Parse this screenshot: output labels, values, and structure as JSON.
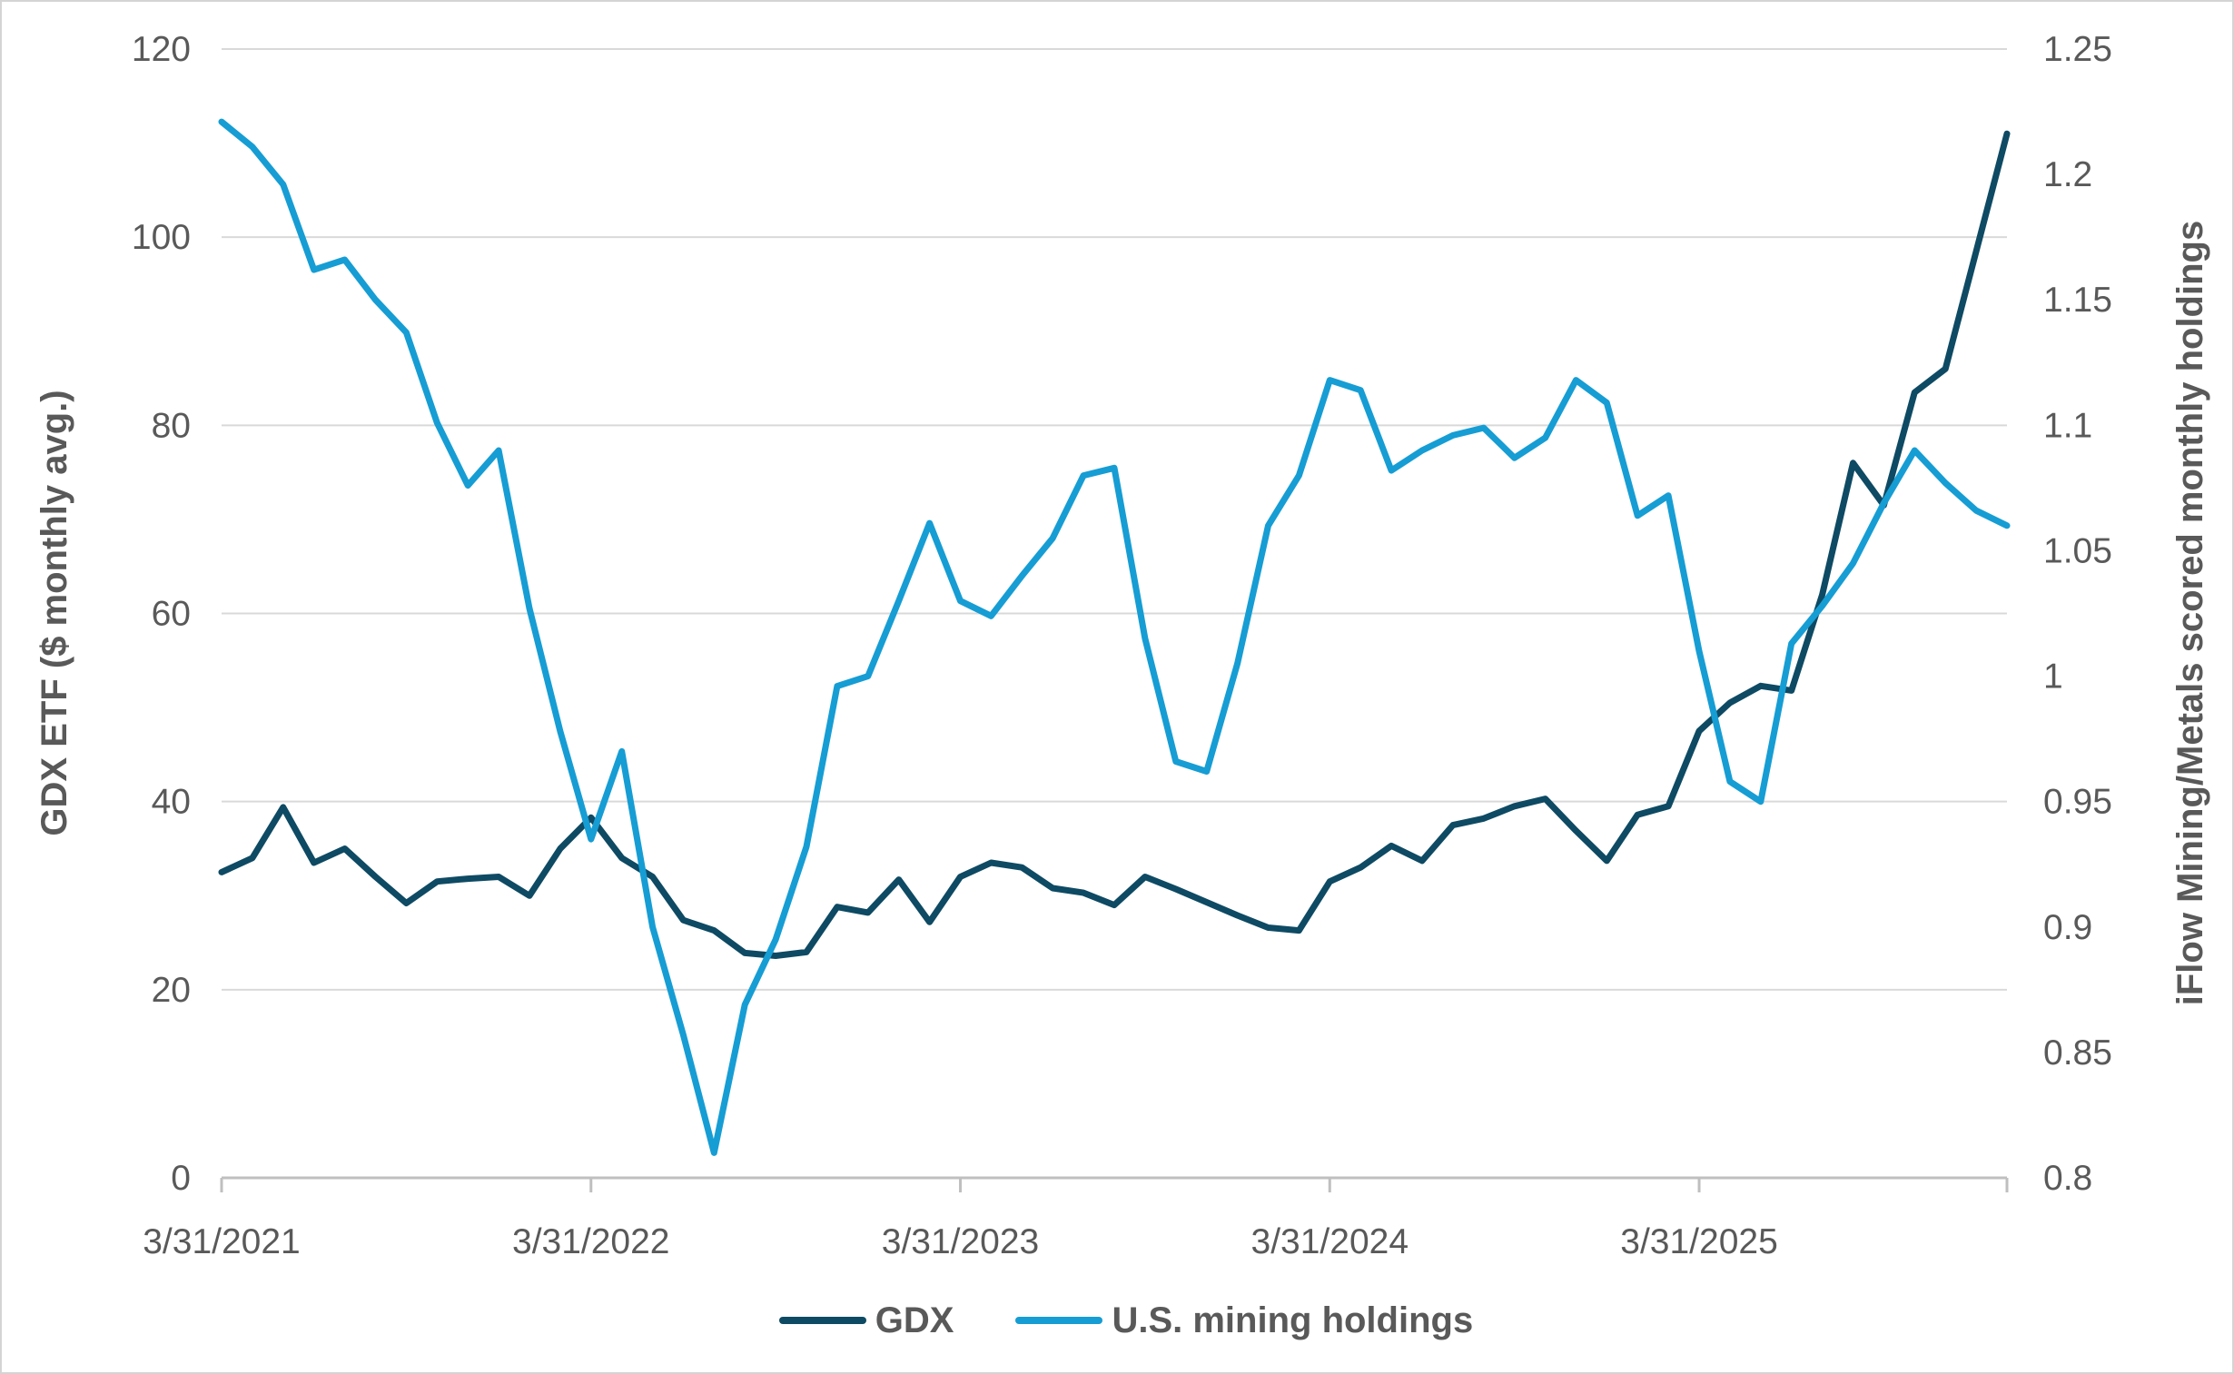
{
  "chart_data": {
    "type": "line",
    "title": "",
    "x_dates": [
      "3/31/2021",
      "4/30/2021",
      "5/31/2021",
      "6/30/2021",
      "7/31/2021",
      "8/31/2021",
      "9/30/2021",
      "10/31/2021",
      "11/30/2021",
      "12/31/2021",
      "1/31/2022",
      "2/28/2022",
      "3/31/2022",
      "4/30/2022",
      "5/31/2022",
      "6/30/2022",
      "7/31/2022",
      "8/31/2022",
      "9/30/2022",
      "10/31/2022",
      "11/30/2022",
      "12/31/2022",
      "1/31/2023",
      "2/28/2023",
      "3/31/2023",
      "4/30/2023",
      "5/31/2023",
      "6/30/2023",
      "7/31/2023",
      "8/31/2023",
      "9/30/2023",
      "10/31/2023",
      "11/30/2023",
      "12/31/2023",
      "1/31/2024",
      "2/29/2024",
      "3/31/2024",
      "4/30/2024",
      "5/31/2024",
      "6/30/2024",
      "7/31/2024",
      "8/31/2024",
      "9/30/2024",
      "10/31/2024",
      "11/30/2024",
      "12/31/2024",
      "1/31/2025",
      "2/28/2025",
      "3/31/2025",
      "4/30/2025",
      "5/31/2025",
      "6/30/2025",
      "7/31/2025",
      "8/31/2025",
      "9/30/2025",
      "10/31/2025",
      "11/30/2025",
      "12/31/2025",
      "1/31/2026"
    ],
    "x_tick_labels": [
      "3/31/2021",
      "3/31/2022",
      "3/31/2023",
      "3/31/2024",
      "3/31/2025"
    ],
    "x_tick_indices": [
      0,
      12,
      24,
      36,
      48
    ],
    "series": [
      {
        "name": "GDX",
        "axis": "left",
        "color": "#0E4A63",
        "values": [
          32.5,
          34,
          39.4,
          33.5,
          35,
          32,
          29.2,
          31.5,
          31.8,
          32,
          30,
          35,
          38.3,
          34,
          32,
          27.4,
          26.3,
          23.9,
          23.6,
          24,
          28.8,
          28.2,
          31.7,
          27.2,
          32,
          33.5,
          33,
          30.8,
          30.3,
          29,
          32,
          30.7,
          29.3,
          27.9,
          26.6,
          26.3,
          31.5,
          33,
          35.3,
          33.7,
          37.5,
          38.2,
          39.5,
          40.3,
          36.9,
          33.7,
          38.6,
          39.5,
          47.5,
          50.5,
          52.3,
          51.8,
          62,
          76,
          71.5,
          83.5,
          86,
          98.5,
          111
        ]
      },
      {
        "name": "U.S. mining holdings",
        "axis": "right",
        "color": "#169DD4",
        "values": [
          1.221,
          1.211,
          1.196,
          1.162,
          1.166,
          1.15,
          1.137,
          1.101,
          1.076,
          1.09,
          1.027,
          0.978,
          0.935,
          0.97,
          0.9,
          0.857,
          0.81,
          0.869,
          0.895,
          0.932,
          0.996,
          1.0,
          1.03,
          1.061,
          1.03,
          1.024,
          1.04,
          1.055,
          1.08,
          1.083,
          1.015,
          0.966,
          0.962,
          1.005,
          1.06,
          1.08,
          1.118,
          1.114,
          1.082,
          1.09,
          1.096,
          1.099,
          1.087,
          1.095,
          1.118,
          1.109,
          1.064,
          1.072,
          1.01,
          0.958,
          0.95,
          1.013,
          1.028,
          1.045,
          1.069,
          1.09,
          1.077,
          1.066,
          1.06
        ]
      }
    ],
    "left_axis": {
      "label": "GDX ETF ($ monthly avg.)",
      "min": 0,
      "max": 120,
      "step": 20,
      "tick_labels": [
        "0",
        "20",
        "40",
        "60",
        "80",
        "100",
        "120"
      ]
    },
    "right_axis": {
      "label": "iFlow Mining/Metals scored monthly holdings",
      "min": 0.8,
      "max": 1.25,
      "step": 0.05,
      "tick_labels": [
        "0.8",
        "0.85",
        "0.9",
        "0.95",
        "1",
        "1.05",
        "1.1",
        "1.15",
        "1.2",
        "1.25"
      ]
    },
    "grid": "horizontal",
    "legend_position": "bottom",
    "colors": {
      "gridline": "#D9D9D9",
      "axis_line": "#BFBFBF",
      "tick_mark": "#BFBFBF",
      "text": "#595959",
      "background": "#FFFFFF"
    }
  }
}
